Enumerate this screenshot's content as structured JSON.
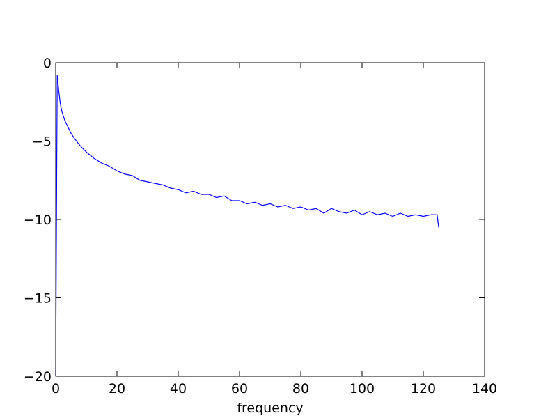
{
  "chart_data": {
    "type": "line",
    "xlabel": "frequency",
    "x": [
      0,
      0.5,
      1,
      1.5,
      2,
      3,
      4,
      5,
      6,
      8,
      10,
      12.5,
      15,
      17.5,
      20,
      22.5,
      25,
      27.5,
      30,
      32.5,
      35,
      37.5,
      40,
      42.5,
      45,
      47.5,
      50,
      52.5,
      55,
      57.5,
      60,
      62.5,
      65,
      67.5,
      70,
      72.5,
      75,
      77.5,
      80,
      82.5,
      85,
      87.5,
      90,
      92.5,
      95,
      97.5,
      100,
      102.5,
      105,
      107.5,
      110,
      112.5,
      115,
      117.5,
      120,
      122.5,
      124.5,
      125
    ],
    "series": [
      {
        "color": "#0000ff",
        "values": [
          -20,
          -0.8,
          -1.8,
          -2.6,
          -3.1,
          -3.7,
          -4.1,
          -4.5,
          -4.8,
          -5.3,
          -5.7,
          -6.1,
          -6.4,
          -6.6,
          -6.9,
          -7.1,
          -7.2,
          -7.5,
          -7.6,
          -7.7,
          -7.8,
          -8.0,
          -8.1,
          -8.3,
          -8.2,
          -8.4,
          -8.4,
          -8.6,
          -8.5,
          -8.8,
          -8.8,
          -9.0,
          -8.9,
          -9.1,
          -9.0,
          -9.2,
          -9.1,
          -9.3,
          -9.2,
          -9.4,
          -9.3,
          -9.6,
          -9.3,
          -9.5,
          -9.6,
          -9.4,
          -9.7,
          -9.5,
          -9.7,
          -9.6,
          -9.8,
          -9.6,
          -9.8,
          -9.7,
          -9.8,
          -9.7,
          -9.7,
          -10.5
        ]
      }
    ],
    "xlim": [
      0,
      140
    ],
    "xticks": [
      0,
      20,
      40,
      60,
      80,
      100,
      120,
      140
    ],
    "ylim": [
      -20,
      0
    ],
    "yticks": [
      {
        "value": -20,
        "label": "−20"
      },
      {
        "value": -15,
        "label": "−15"
      },
      {
        "value": -10,
        "label": "−10"
      },
      {
        "value": -5,
        "label": "−5"
      },
      0
    ]
  }
}
